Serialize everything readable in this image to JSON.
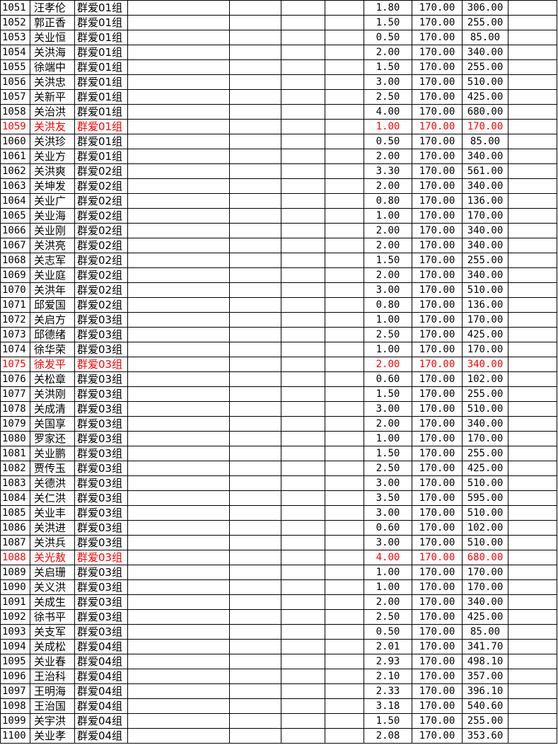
{
  "highlight_color": "#ff0000",
  "rows": [
    {
      "id": "1051",
      "name": "汪孝伦",
      "group": "群爱01组",
      "qty": "1.80",
      "price": "170.00",
      "amount": "306.00",
      "highlight": false
    },
    {
      "id": "1052",
      "name": "郭正香",
      "group": "群爱01组",
      "qty": "1.50",
      "price": "170.00",
      "amount": "255.00",
      "highlight": false
    },
    {
      "id": "1053",
      "name": "关业恒",
      "group": "群爱01组",
      "qty": "0.50",
      "price": "170.00",
      "amount": "85.00",
      "highlight": false
    },
    {
      "id": "1054",
      "name": "关洪海",
      "group": "群爱01组",
      "qty": "2.00",
      "price": "170.00",
      "amount": "340.00",
      "highlight": false
    },
    {
      "id": "1055",
      "name": "徐端中",
      "group": "群爱01组",
      "qty": "1.50",
      "price": "170.00",
      "amount": "255.00",
      "highlight": false
    },
    {
      "id": "1056",
      "name": "关洪忠",
      "group": "群爱01组",
      "qty": "3.00",
      "price": "170.00",
      "amount": "510.00",
      "highlight": false
    },
    {
      "id": "1057",
      "name": "关新平",
      "group": "群爱01组",
      "qty": "2.50",
      "price": "170.00",
      "amount": "425.00",
      "highlight": false
    },
    {
      "id": "1058",
      "name": "关治洪",
      "group": "群爱01组",
      "qty": "4.00",
      "price": "170.00",
      "amount": "680.00",
      "highlight": false
    },
    {
      "id": "1059",
      "name": "关洪友",
      "group": "群爱01组",
      "qty": "1.00",
      "price": "170.00",
      "amount": "170.00",
      "highlight": true
    },
    {
      "id": "1060",
      "name": "关洪珍",
      "group": "群爱01组",
      "qty": "0.50",
      "price": "170.00",
      "amount": "85.00",
      "highlight": false
    },
    {
      "id": "1061",
      "name": "关业方",
      "group": "群爱01组",
      "qty": "2.00",
      "price": "170.00",
      "amount": "340.00",
      "highlight": false
    },
    {
      "id": "1062",
      "name": "关洪爽",
      "group": "群爱02组",
      "qty": "3.30",
      "price": "170.00",
      "amount": "561.00",
      "highlight": false
    },
    {
      "id": "1063",
      "name": "关坤发",
      "group": "群爱02组",
      "qty": "2.00",
      "price": "170.00",
      "amount": "340.00",
      "highlight": false
    },
    {
      "id": "1064",
      "name": "关业广",
      "group": "群爱02组",
      "qty": "0.80",
      "price": "170.00",
      "amount": "136.00",
      "highlight": false
    },
    {
      "id": "1065",
      "name": "关业海",
      "group": "群爱02组",
      "qty": "1.00",
      "price": "170.00",
      "amount": "170.00",
      "highlight": false
    },
    {
      "id": "1066",
      "name": "关业刚",
      "group": "群爱02组",
      "qty": "2.00",
      "price": "170.00",
      "amount": "340.00",
      "highlight": false
    },
    {
      "id": "1067",
      "name": "关洪亮",
      "group": "群爱02组",
      "qty": "2.00",
      "price": "170.00",
      "amount": "340.00",
      "highlight": false
    },
    {
      "id": "1068",
      "name": "关志军",
      "group": "群爱02组",
      "qty": "1.50",
      "price": "170.00",
      "amount": "255.00",
      "highlight": false
    },
    {
      "id": "1069",
      "name": "关业庭",
      "group": "群爱02组",
      "qty": "2.00",
      "price": "170.00",
      "amount": "340.00",
      "highlight": false
    },
    {
      "id": "1070",
      "name": "关洪年",
      "group": "群爱02组",
      "qty": "3.00",
      "price": "170.00",
      "amount": "510.00",
      "highlight": false
    },
    {
      "id": "1071",
      "name": "邱爱国",
      "group": "群爱02组",
      "qty": "0.80",
      "price": "170.00",
      "amount": "136.00",
      "highlight": false
    },
    {
      "id": "1072",
      "name": "关启方",
      "group": "群爱03组",
      "qty": "1.00",
      "price": "170.00",
      "amount": "170.00",
      "highlight": false
    },
    {
      "id": "1073",
      "name": "邱德绪",
      "group": "群爱03组",
      "qty": "2.50",
      "price": "170.00",
      "amount": "425.00",
      "highlight": false
    },
    {
      "id": "1074",
      "name": "徐华荣",
      "group": "群爱03组",
      "qty": "1.00",
      "price": "170.00",
      "amount": "170.00",
      "highlight": false
    },
    {
      "id": "1075",
      "name": "徐发平",
      "group": "群爱03组",
      "qty": "2.00",
      "price": "170.00",
      "amount": "340.00",
      "highlight": true
    },
    {
      "id": "1076",
      "name": "关松章",
      "group": "群爱03组",
      "qty": "0.60",
      "price": "170.00",
      "amount": "102.00",
      "highlight": false
    },
    {
      "id": "1077",
      "name": "关洪刚",
      "group": "群爱03组",
      "qty": "1.50",
      "price": "170.00",
      "amount": "255.00",
      "highlight": false
    },
    {
      "id": "1078",
      "name": "关成清",
      "group": "群爱03组",
      "qty": "3.00",
      "price": "170.00",
      "amount": "510.00",
      "highlight": false
    },
    {
      "id": "1079",
      "name": "关国享",
      "group": "群爱03组",
      "qty": "2.00",
      "price": "170.00",
      "amount": "340.00",
      "highlight": false
    },
    {
      "id": "1080",
      "name": "罗家还",
      "group": "群爱03组",
      "qty": "1.00",
      "price": "170.00",
      "amount": "170.00",
      "highlight": false
    },
    {
      "id": "1081",
      "name": "关业鹏",
      "group": "群爱03组",
      "qty": "1.50",
      "price": "170.00",
      "amount": "255.00",
      "highlight": false
    },
    {
      "id": "1082",
      "name": "贾传玉",
      "group": "群爱03组",
      "qty": "2.50",
      "price": "170.00",
      "amount": "425.00",
      "highlight": false
    },
    {
      "id": "1083",
      "name": "关德洪",
      "group": "群爱03组",
      "qty": "3.00",
      "price": "170.00",
      "amount": "510.00",
      "highlight": false
    },
    {
      "id": "1084",
      "name": "关仁洪",
      "group": "群爱03组",
      "qty": "3.50",
      "price": "170.00",
      "amount": "595.00",
      "highlight": false
    },
    {
      "id": "1085",
      "name": "关业丰",
      "group": "群爱03组",
      "qty": "3.00",
      "price": "170.00",
      "amount": "510.00",
      "highlight": false
    },
    {
      "id": "1086",
      "name": "关洪进",
      "group": "群爱03组",
      "qty": "0.60",
      "price": "170.00",
      "amount": "102.00",
      "highlight": false
    },
    {
      "id": "1087",
      "name": "关洪兵",
      "group": "群爱03组",
      "qty": "3.00",
      "price": "170.00",
      "amount": "510.00",
      "highlight": false
    },
    {
      "id": "1088",
      "name": "关光敖",
      "group": "群爱03组",
      "qty": "4.00",
      "price": "170.00",
      "amount": "680.00",
      "highlight": true
    },
    {
      "id": "1089",
      "name": "关启珊",
      "group": "群爱03组",
      "qty": "1.00",
      "price": "170.00",
      "amount": "170.00",
      "highlight": false
    },
    {
      "id": "1090",
      "name": "关义洪",
      "group": "群爱03组",
      "qty": "1.00",
      "price": "170.00",
      "amount": "170.00",
      "highlight": false
    },
    {
      "id": "1091",
      "name": "关成生",
      "group": "群爱03组",
      "qty": "2.00",
      "price": "170.00",
      "amount": "340.00",
      "highlight": false
    },
    {
      "id": "1092",
      "name": "徐书平",
      "group": "群爱03组",
      "qty": "2.50",
      "price": "170.00",
      "amount": "425.00",
      "highlight": false
    },
    {
      "id": "1093",
      "name": "关支军",
      "group": "群爱03组",
      "qty": "0.50",
      "price": "170.00",
      "amount": "85.00",
      "highlight": false
    },
    {
      "id": "1094",
      "name": "关成松",
      "group": "群爱04组",
      "qty": "2.01",
      "price": "170.00",
      "amount": "341.70",
      "highlight": false
    },
    {
      "id": "1095",
      "name": "关业春",
      "group": "群爱04组",
      "qty": "2.93",
      "price": "170.00",
      "amount": "498.10",
      "highlight": false
    },
    {
      "id": "1096",
      "name": "王治科",
      "group": "群爱04组",
      "qty": "2.10",
      "price": "170.00",
      "amount": "357.00",
      "highlight": false
    },
    {
      "id": "1097",
      "name": "王明海",
      "group": "群爱04组",
      "qty": "2.33",
      "price": "170.00",
      "amount": "396.10",
      "highlight": false
    },
    {
      "id": "1098",
      "name": "王治国",
      "group": "群爱04组",
      "qty": "3.18",
      "price": "170.00",
      "amount": "540.60",
      "highlight": false
    },
    {
      "id": "1099",
      "name": "关宇洪",
      "group": "群爱04组",
      "qty": "1.50",
      "price": "170.00",
      "amount": "255.00",
      "highlight": false
    },
    {
      "id": "1100",
      "name": "关业孝",
      "group": "群爱04组",
      "qty": "2.08",
      "price": "170.00",
      "amount": "353.60",
      "highlight": false
    }
  ]
}
